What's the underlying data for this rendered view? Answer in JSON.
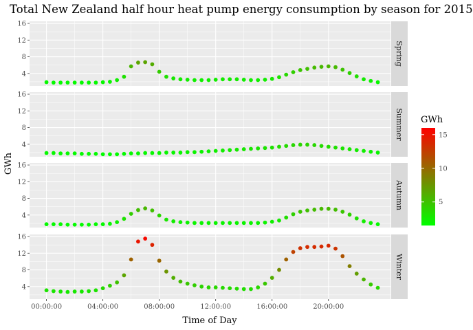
{
  "chart_data": {
    "type": "scatter",
    "title": "Total New Zealand half hour heat pump energy consumption by season for 2015",
    "xlabel": "Time of Day",
    "ylabel": "GWh",
    "x_ticks": [
      "00:00:00",
      "04:00:00",
      "08:00:00",
      "12:00:00",
      "16:00:00",
      "20:00:00"
    ],
    "x_tick_hours": [
      0,
      4,
      8,
      12,
      16,
      20
    ],
    "xlim_hours": [
      -1.2,
      24.4
    ],
    "ylim": [
      1,
      16.5
    ],
    "y_ticks": [
      4,
      8,
      12,
      16
    ],
    "grid": true,
    "facets": [
      "Spring",
      "Summer",
      "Autumn",
      "Winter"
    ],
    "x_hours": [
      0,
      0.5,
      1,
      1.5,
      2,
      2.5,
      3,
      3.5,
      4,
      4.5,
      5,
      5.5,
      6,
      6.5,
      7,
      7.5,
      8,
      8.5,
      9,
      9.5,
      10,
      10.5,
      11,
      11.5,
      12,
      12.5,
      13,
      13.5,
      14,
      14.5,
      15,
      15.5,
      16,
      16.5,
      17,
      17.5,
      18,
      18.5,
      19,
      19.5,
      20,
      20.5,
      21,
      21.5,
      22,
      22.5,
      23,
      23.5
    ],
    "series": [
      {
        "name": "Spring",
        "values": [
          1.9,
          1.8,
          1.8,
          1.8,
          1.8,
          1.8,
          1.8,
          1.8,
          1.9,
          2.0,
          2.4,
          3.2,
          5.7,
          6.6,
          6.7,
          6.2,
          4.4,
          3.2,
          2.8,
          2.6,
          2.5,
          2.4,
          2.4,
          2.4,
          2.5,
          2.6,
          2.6,
          2.6,
          2.5,
          2.4,
          2.4,
          2.5,
          2.7,
          3.1,
          3.7,
          4.3,
          4.8,
          5.1,
          5.4,
          5.6,
          5.7,
          5.5,
          4.9,
          4.1,
          3.3,
          2.6,
          2.2,
          1.9
        ]
      },
      {
        "name": "Summer",
        "values": [
          1.9,
          1.9,
          1.8,
          1.8,
          1.8,
          1.7,
          1.7,
          1.7,
          1.6,
          1.6,
          1.6,
          1.7,
          1.8,
          1.8,
          1.9,
          1.9,
          1.9,
          2.0,
          2.0,
          2.0,
          2.1,
          2.1,
          2.2,
          2.3,
          2.4,
          2.5,
          2.6,
          2.7,
          2.8,
          2.9,
          3.0,
          3.1,
          3.2,
          3.4,
          3.6,
          3.8,
          3.9,
          3.9,
          3.8,
          3.6,
          3.4,
          3.2,
          3.0,
          2.8,
          2.6,
          2.4,
          2.2,
          2.0
        ]
      },
      {
        "name": "Autumn",
        "values": [
          1.8,
          1.8,
          1.8,
          1.7,
          1.7,
          1.7,
          1.7,
          1.8,
          1.8,
          1.9,
          2.3,
          3.1,
          4.3,
          5.2,
          5.6,
          5.1,
          3.9,
          2.9,
          2.5,
          2.3,
          2.2,
          2.1,
          2.1,
          2.1,
          2.1,
          2.1,
          2.1,
          2.1,
          2.1,
          2.1,
          2.1,
          2.2,
          2.4,
          2.7,
          3.4,
          4.2,
          4.8,
          5.1,
          5.3,
          5.5,
          5.5,
          5.3,
          4.8,
          4.1,
          3.2,
          2.5,
          2.1,
          1.8
        ]
      },
      {
        "name": "Winter",
        "values": [
          3.1,
          2.9,
          2.8,
          2.7,
          2.8,
          2.8,
          2.9,
          3.1,
          3.6,
          4.2,
          5.0,
          6.7,
          10.5,
          14.8,
          15.5,
          14.0,
          10.2,
          7.6,
          6.1,
          5.2,
          4.7,
          4.3,
          4.0,
          3.8,
          3.8,
          3.7,
          3.6,
          3.5,
          3.4,
          3.4,
          3.8,
          4.7,
          6.1,
          8.0,
          10.5,
          12.3,
          13.2,
          13.5,
          13.5,
          13.6,
          13.8,
          13.1,
          11.3,
          8.9,
          7.1,
          5.7,
          4.5,
          3.7
        ]
      }
    ],
    "color_scale": {
      "title": "GWh",
      "low_color": "#00ff00",
      "high_color": "#ff0000",
      "min": 1.5,
      "max": 16,
      "ticks": [
        5,
        10,
        15
      ]
    }
  },
  "colors": {
    "panel_bg": "#ebebeb",
    "strip_bg": "#d9d9d9",
    "grid": "#ffffff",
    "tick_text": "#4d4d4d"
  }
}
